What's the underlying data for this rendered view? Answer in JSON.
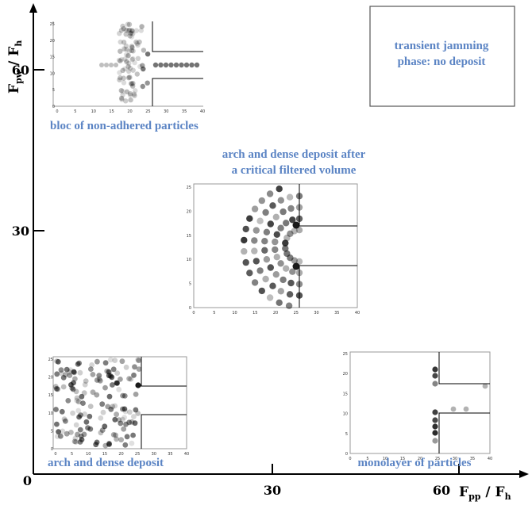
{
  "axes": {
    "origin_label": "0",
    "x_ticks": [
      "30",
      "60"
    ],
    "y_ticks": [
      "30",
      "60"
    ],
    "x_label_main": "F",
    "x_label_main_sub": "pp",
    "x_label_sep": " / F",
    "x_label_den_sub": "h",
    "y_label_main": "F",
    "y_label_main_sub": "pw",
    "y_label_sep": " / F",
    "y_label_den_sub": "h"
  },
  "regions": {
    "top_left": {
      "caption": "bloc of non-adhered particles",
      "x_ticks": [
        "0",
        "5",
        "10",
        "15",
        "20",
        "25",
        "30",
        "35",
        "40"
      ],
      "y_ticks": [
        "0",
        "5",
        "10",
        "15",
        "20",
        "25"
      ]
    },
    "top_right": {
      "caption_line1": "transient jamming",
      "caption_line2": "phase: no deposit"
    },
    "center": {
      "caption_line1": "arch and dense deposit after",
      "caption_line2": "a critical filtered volume",
      "x_ticks": [
        "0",
        "5",
        "10",
        "15",
        "20",
        "25",
        "30",
        "35",
        "40"
      ],
      "y_ticks": [
        "0",
        "5",
        "10",
        "15",
        "20",
        "25"
      ]
    },
    "bottom_left": {
      "caption": "arch and dense deposit",
      "x_ticks": [
        "0",
        "5",
        "10",
        "15",
        "20",
        "25",
        "30",
        "35",
        "40"
      ],
      "y_ticks": [
        "0",
        "5",
        "10",
        "15",
        "20",
        "25"
      ]
    },
    "bottom_right": {
      "caption": "monolayer of particles",
      "x_ticks": [
        "0",
        "5",
        "10",
        "15",
        "20",
        "25",
        "30",
        "35",
        "40"
      ],
      "y_ticks": [
        "0",
        "5",
        "10",
        "15",
        "20",
        "25"
      ]
    }
  },
  "colors": {
    "caption": "#5b84c4",
    "axis": "#000000",
    "frame": "#888888"
  }
}
